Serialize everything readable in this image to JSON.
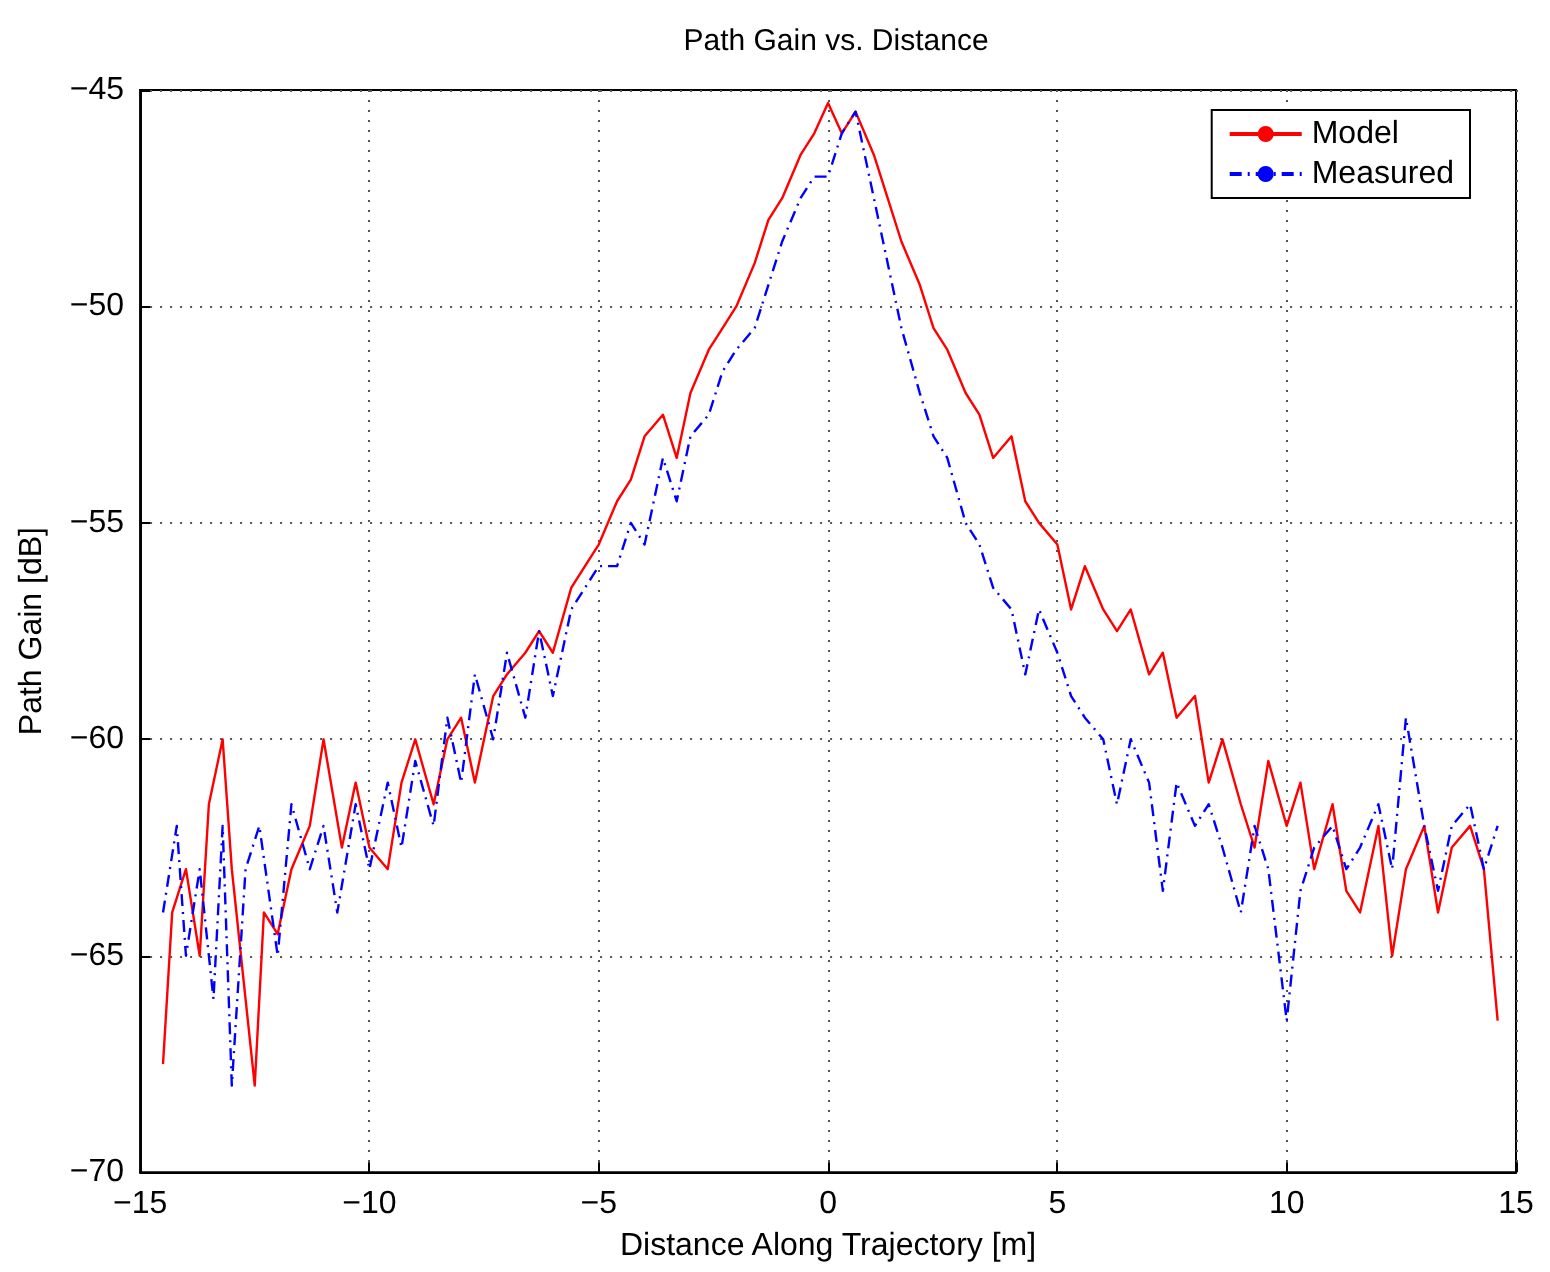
{
  "chart_data": {
    "type": "line",
    "title": "Path Gain vs. Distance",
    "xlabel": "Distance Along Trajectory [m]",
    "ylabel": "Path Gain [dB]",
    "xlim": [
      -15,
      15
    ],
    "xticks": [
      -15,
      -10,
      -5,
      0,
      5,
      10,
      15
    ],
    "ylim": [
      -70,
      -45
    ],
    "yticks": [
      -70,
      -65,
      -60,
      -55,
      -50,
      -45
    ],
    "grid": true,
    "legend": "top right",
    "marker": "none",
    "series": [
      {
        "name": "Model",
        "color": "#ff0000",
        "line_style": "solid",
        "x": [
          -14.5,
          -14.3,
          -14,
          -13.7,
          -13.5,
          -13.2,
          -13,
          -12.7,
          -12.5,
          -12.3,
          -12,
          -11.7,
          -11.3,
          -11,
          -10.6,
          -10.3,
          -10,
          -9.6,
          -9.3,
          -9,
          -8.6,
          -8.3,
          -8,
          -7.7,
          -7.3,
          -7,
          -6.6,
          -6.3,
          -6,
          -5.6,
          -5.3,
          -5,
          -4.6,
          -4.3,
          -4,
          -3.6,
          -3.3,
          -3,
          -2.6,
          -2.3,
          -2,
          -1.6,
          -1.3,
          -1,
          -0.6,
          -0.3,
          0,
          0.3,
          0.6,
          1,
          1.3,
          1.6,
          2,
          2.3,
          2.6,
          3,
          3.3,
          3.6,
          4,
          4.3,
          4.6,
          5,
          5.3,
          5.6,
          6,
          6.3,
          6.6,
          7,
          7.3,
          7.6,
          8,
          8.3,
          8.6,
          9,
          9.3,
          9.6,
          10,
          10.3,
          10.6,
          11,
          11.3,
          11.6,
          12,
          12.3,
          12.6,
          13,
          13.3,
          13.6,
          14,
          14.3,
          14.6
        ],
        "values": [
          -67.5,
          -64,
          -63,
          -65,
          -61.5,
          -60,
          -63,
          -66,
          -68,
          -64,
          -64.5,
          -63,
          -62,
          -60,
          -62.5,
          -61,
          -62.5,
          -63,
          -61,
          -60,
          -61.5,
          -60,
          -59.5,
          -61,
          -59,
          -58.5,
          -58,
          -57.5,
          -58,
          -56.5,
          -56,
          -55.5,
          -54.5,
          -54,
          -53,
          -52.5,
          -53.5,
          -52,
          -51,
          -50.5,
          -50,
          -49,
          -48,
          -47.5,
          -46.5,
          -46,
          -45.3,
          -46,
          -45.5,
          -46.5,
          -47.5,
          -48.5,
          -49.5,
          -50.5,
          -51,
          -52,
          -52.5,
          -53.5,
          -53,
          -54.5,
          -55,
          -55.5,
          -57,
          -56,
          -57,
          -57.5,
          -57,
          -58.5,
          -58,
          -59.5,
          -59,
          -61,
          -60,
          -61.5,
          -62.5,
          -60.5,
          -62,
          -61,
          -63,
          -61.5,
          -63.5,
          -64,
          -62,
          -65,
          -63,
          -62,
          -64,
          -62.5,
          -62,
          -63,
          -66.5
        ]
      },
      {
        "name": "Measured",
        "color": "#0000ff",
        "line_style": "dashed",
        "x": [
          -14.5,
          -14.2,
          -14,
          -13.7,
          -13.4,
          -13.2,
          -13,
          -12.7,
          -12.4,
          -12,
          -11.7,
          -11.3,
          -11,
          -10.7,
          -10.3,
          -10,
          -9.6,
          -9.3,
          -9,
          -8.6,
          -8.3,
          -8,
          -7.7,
          -7.3,
          -7,
          -6.6,
          -6.3,
          -6,
          -5.6,
          -5.3,
          -5,
          -4.6,
          -4.3,
          -4,
          -3.6,
          -3.3,
          -3,
          -2.6,
          -2.3,
          -2,
          -1.6,
          -1.3,
          -1,
          -0.6,
          -0.3,
          0,
          0.3,
          0.6,
          1,
          1.3,
          1.6,
          2,
          2.3,
          2.6,
          3,
          3.3,
          3.6,
          4,
          4.3,
          4.6,
          5,
          5.3,
          5.6,
          6,
          6.3,
          6.6,
          7,
          7.3,
          7.6,
          8,
          8.3,
          8.6,
          9,
          9.3,
          9.6,
          10,
          10.3,
          10.6,
          11,
          11.3,
          11.6,
          12,
          12.3,
          12.6,
          13,
          13.3,
          13.6,
          14,
          14.3,
          14.6
        ],
        "values": [
          -64,
          -62,
          -65,
          -63,
          -66,
          -62,
          -68,
          -63,
          -62,
          -65,
          -61.5,
          -63,
          -62,
          -64,
          -61.5,
          -63,
          -61,
          -62.5,
          -60.5,
          -62,
          -59.5,
          -61,
          -58.5,
          -60,
          -58,
          -59.5,
          -57.5,
          -59,
          -57,
          -56.5,
          -56,
          -56,
          -55,
          -55.5,
          -53.5,
          -54.5,
          -53,
          -52.5,
          -51.5,
          -51,
          -50.5,
          -49.5,
          -48.5,
          -47.5,
          -47,
          -47,
          -46,
          -45.5,
          -47.5,
          -49,
          -50.5,
          -52,
          -53,
          -53.5,
          -55,
          -55.5,
          -56.5,
          -57,
          -58.5,
          -57,
          -58,
          -59,
          -59.5,
          -60,
          -61.5,
          -60,
          -61,
          -63.5,
          -61,
          -62,
          -61.5,
          -62.5,
          -64,
          -62,
          -63,
          -66.5,
          -63.5,
          -62.5,
          -62,
          -63,
          -62.5,
          -61.5,
          -63,
          -59.5,
          -62,
          -63.5,
          -62,
          -61.5,
          -63,
          -62
        ]
      }
    ]
  }
}
